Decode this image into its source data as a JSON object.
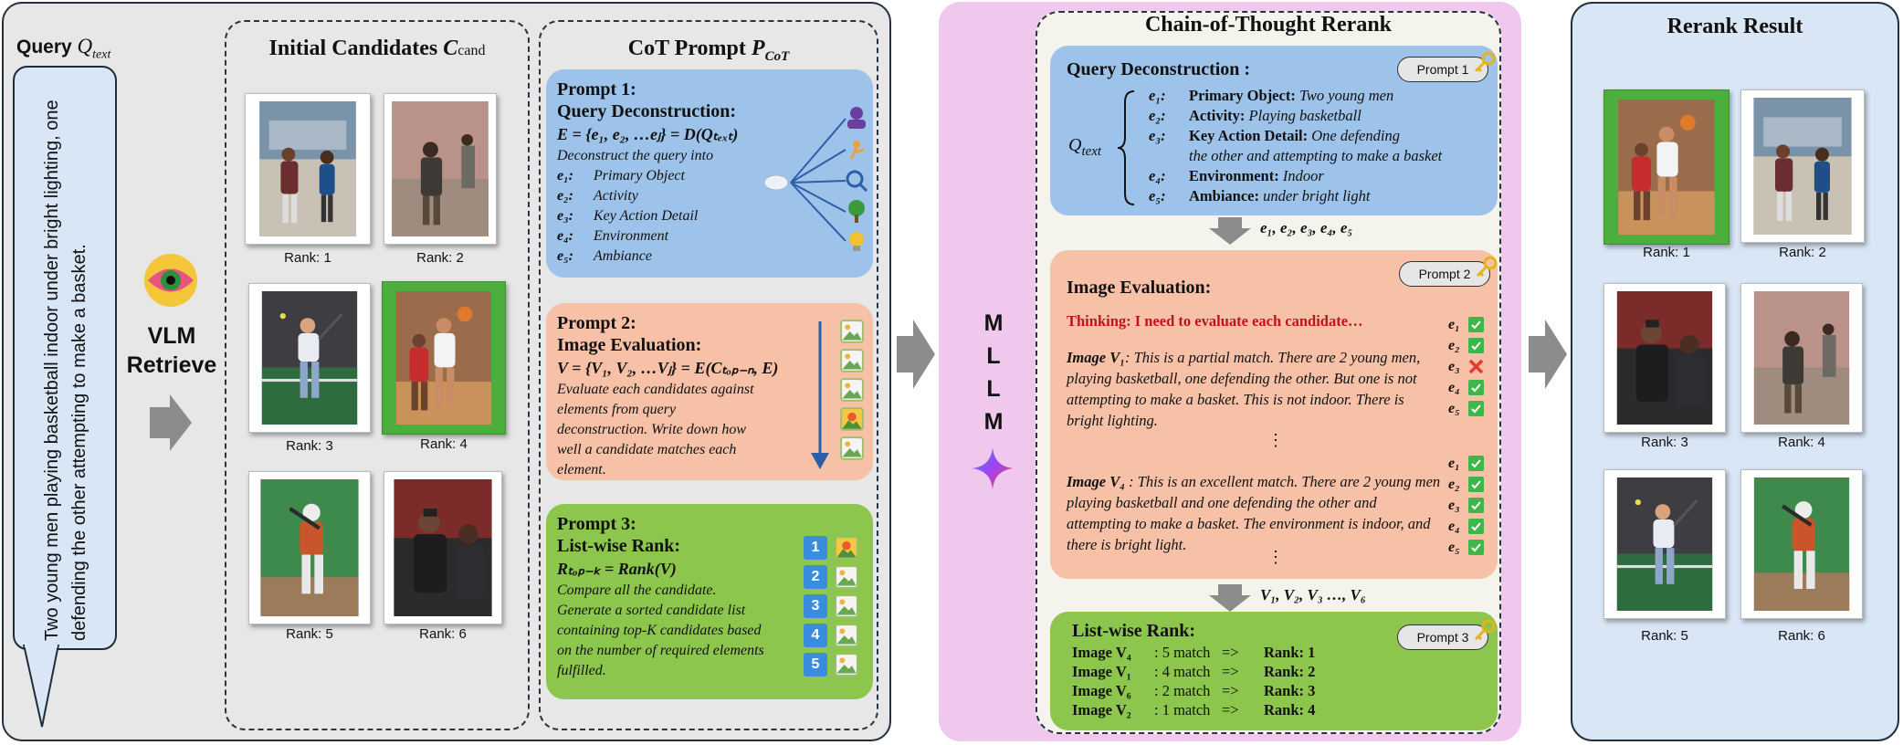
{
  "retrieval": {
    "query_label": "Query",
    "query_symbol": "Q",
    "query_symbol_sub": "text",
    "query_text": "Two young men playing basketball indoor  under bright lighting, one defending the other attempting to make a basket.",
    "vlm_line1": "VLM",
    "vlm_line2": "Retrieve",
    "candidates_title": "Initial Candidates ",
    "candidates_symbol": "C",
    "candidates_symbol_sub": "cand",
    "candidates": [
      {
        "rank": "Rank: 1"
      },
      {
        "rank": "Rank: 2"
      },
      {
        "rank": "Rank: 3"
      },
      {
        "rank": "Rank: 4"
      },
      {
        "rank": "Rank: 5"
      },
      {
        "rank": "Rank: 6"
      }
    ]
  },
  "cot_prompt": {
    "title": "CoT Prompt ",
    "title_symbol": "P",
    "title_symbol_sub": "CoT",
    "p1": {
      "head1": "Prompt 1:",
      "head2": "Query Deconstruction:",
      "equation": "E = {e₁, e₂, …eⱼ} = D(Qₜₑₓₜ)",
      "desc": "Deconstruct the query into",
      "elements": [
        {
          "key": "e₁:",
          "label": "Primary Object"
        },
        {
          "key": "e₂:",
          "label": "Activity"
        },
        {
          "key": "e₃:",
          "label": "Key Action Detail"
        },
        {
          "key": "e₄:",
          "label": "Environment"
        },
        {
          "key": "e₅:",
          "label": "Ambiance"
        }
      ]
    },
    "p2": {
      "head1": "Prompt 2:",
      "head2": "Image Evaluation:",
      "equation": "V = {V₁, V₂, …Vⱼ} = E(Cₜₒₚ₋ₙ, E)",
      "desc": "Evaluate each candidates against elements from query deconstruction. Write down how well a candidate matches each element."
    },
    "p3": {
      "head1": "Prompt 3:",
      "head2": "List-wise Rank:",
      "equation": "Rₜₒₚ₋ₖ = Rank(V)",
      "desc": "Compare all the candidate. Generate a sorted candidate list containing top-K candidates based on the number of required elements fulfilled.",
      "numbers": [
        "1",
        "2",
        "3",
        "4",
        "5"
      ]
    }
  },
  "mllm": {
    "letters": [
      "M",
      "L",
      "L",
      "M"
    ]
  },
  "rerank": {
    "title": "Chain-of-Thought Rerank",
    "qd": {
      "title": "Query Deconstruction :",
      "prompt_tag": "Prompt 1",
      "q_symbol": "Q",
      "q_sub": "text",
      "rows": [
        {
          "key": "e₁:",
          "name": "Primary Object:",
          "value": " Two young men"
        },
        {
          "key": "e₂:",
          "name": "Activity:",
          "value": " Playing basketball"
        },
        {
          "key": "e₃:",
          "name": "Key Action Detail:",
          "value": " One defending"
        },
        {
          "key": "",
          "name": "",
          "value": "the other and attempting to make a basket"
        },
        {
          "key": "e₄:",
          "name": "Environment:",
          "value": " Indoor"
        },
        {
          "key": "e₅:",
          "name": "Ambiance:",
          "value": " under bright light"
        }
      ]
    },
    "arrow1_label": "e₁, e₂, e₃, e₄, e₅",
    "ie": {
      "title": "Image Evaluation:",
      "prompt_tag": "Prompt 2",
      "thinking": "Thinking: I need to evaluate each candidate…",
      "v1_label": "Image V₁",
      "v1_text": ": This is a partial match. There are 2 young men, playing basketball,  one defending the other. But one is not attempting to make a basket. This is not indoor. There is bright lighting.",
      "v4_label": "Image V₄",
      "v4_text": " : This is an excellent match. There are 2 young men playing basketball and one defending the other and attempting to make a basket. The environment is indoor, and there is bright light.",
      "ellipsis": "⋮",
      "keys": [
        "e₁",
        "e₂",
        "e₃",
        "e₄",
        "e₅"
      ]
    },
    "arrow2_label": "V₁, V₂, V₃ …, V₆",
    "lr": {
      "title": "List-wise Rank:",
      "prompt_tag": "Prompt 3",
      "rows": [
        {
          "image": "Image V₄",
          "count": " : 5 match",
          "arrow": "=>",
          "rank": "Rank: 1"
        },
        {
          "image": "Image V₁",
          "count": " : 4 match",
          "arrow": "=>",
          "rank": "Rank: 2"
        },
        {
          "image": "Image V₆",
          "count": " : 2 match",
          "arrow": "=>",
          "rank": "Rank: 3"
        },
        {
          "image": "Image V₂",
          "count": " : 1 match",
          "arrow": "=>",
          "rank": "Rank: 4"
        }
      ]
    }
  },
  "result": {
    "title": "Rerank Result",
    "items": [
      {
        "rank": "Rank: 1"
      },
      {
        "rank": "Rank: 2"
      },
      {
        "rank": "Rank: 3"
      },
      {
        "rank": "Rank: 4"
      },
      {
        "rank": "Rank: 5"
      },
      {
        "rank": "Rank: 6"
      }
    ]
  },
  "colors": {
    "prompt1_bg": "#9dc3ea",
    "prompt2_bg": "#f6c1a6",
    "prompt3_bg": "#8dc64d",
    "highlight_green": "#4caf3d",
    "thinking_red": "#c0131a",
    "check_green": "#3fb64a",
    "cross_red": "#e53935"
  }
}
